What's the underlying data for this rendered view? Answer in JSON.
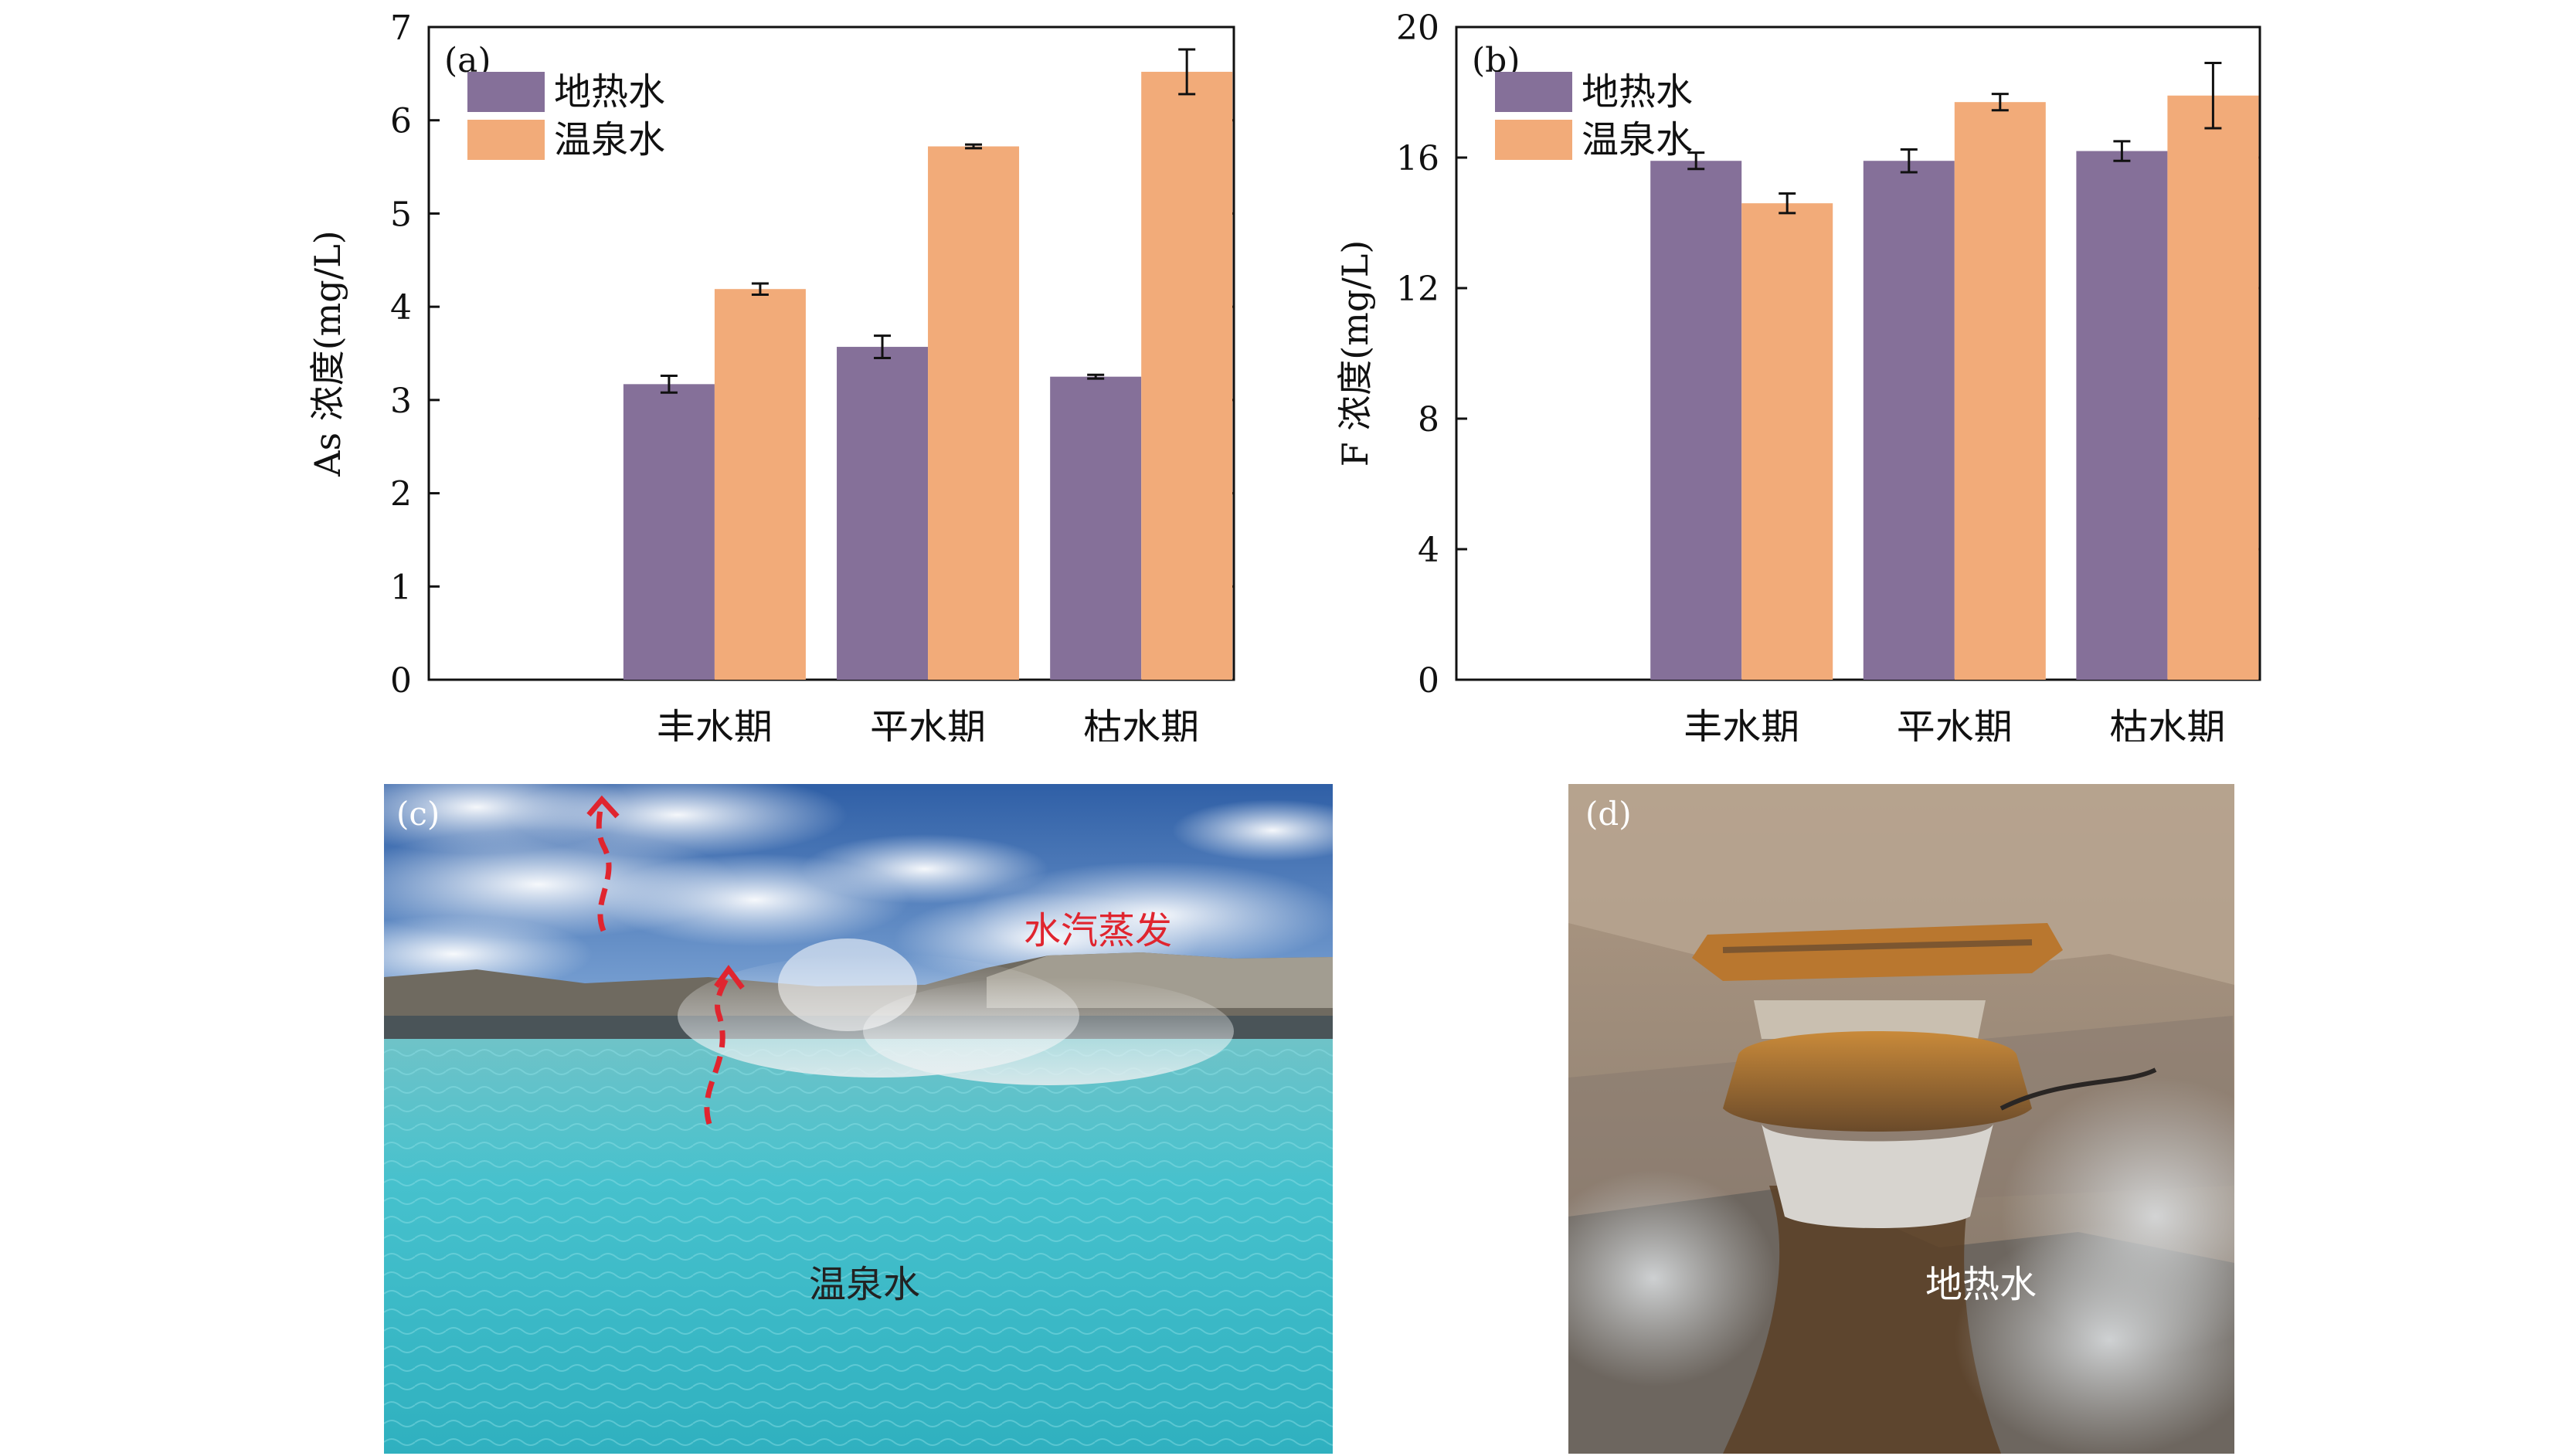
{
  "chart_data": [
    {
      "type": "bar",
      "panel_label": "(a)",
      "categories": [
        "丰水期",
        "平水期",
        "枯水期"
      ],
      "series": [
        {
          "name": "地热水",
          "values": [
            3.17,
            3.57,
            3.25
          ],
          "errors": [
            0.09,
            0.12,
            0.02
          ],
          "color": "#857099"
        },
        {
          "name": "温泉水",
          "values": [
            4.19,
            5.72,
            6.52
          ],
          "errors": [
            0.06,
            0.02,
            0.24
          ],
          "color": "#f2ab79"
        }
      ],
      "ylabel": "As 浓度(mg/L)",
      "ylim": [
        0,
        7
      ],
      "yticks": [
        0,
        1,
        2,
        3,
        4,
        5,
        6,
        7
      ],
      "legend": "top-left",
      "grid": false
    },
    {
      "type": "bar",
      "panel_label": "(b)",
      "categories": [
        "丰水期",
        "平水期",
        "枯水期"
      ],
      "series": [
        {
          "name": "地热水",
          "values": [
            15.9,
            15.9,
            16.2
          ],
          "errors": [
            0.25,
            0.35,
            0.3
          ],
          "color": "#857099"
        },
        {
          "name": "温泉水",
          "values": [
            14.6,
            17.7,
            17.9
          ],
          "errors": [
            0.3,
            0.25,
            1.0
          ],
          "color": "#f2ab79"
        }
      ],
      "ylabel": "F 浓度(mg/L)",
      "ylim": [
        0,
        20
      ],
      "yticks": [
        0,
        4,
        8,
        12,
        16,
        20
      ],
      "legend": "top-left",
      "grid": false
    }
  ],
  "photos": {
    "c": {
      "panel_label": "(c)",
      "steam_label": "水汽蒸发",
      "water_label": "温泉水",
      "icon": "hot-spring-pool-photo"
    },
    "d": {
      "panel_label": "(d)",
      "water_label": "地热水",
      "icon": "geothermal-wellhead-photo"
    }
  },
  "colors": {
    "geothermal": "#857099",
    "hotspring": "#f2ab79",
    "steam_arrow": "#e0252f"
  }
}
